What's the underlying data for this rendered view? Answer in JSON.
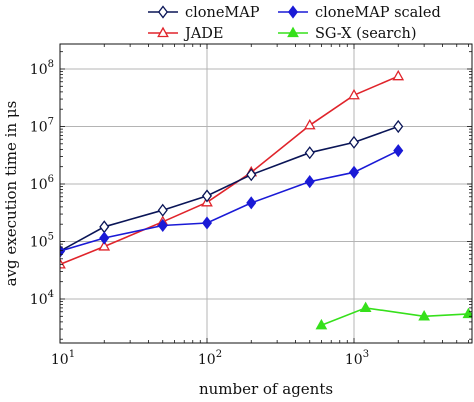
{
  "chart_data": {
    "type": "line",
    "xlabel": "number of agents",
    "ylabel": "avg execution time in μs",
    "x_scale": "log",
    "y_scale": "log",
    "xlim": [
      10,
      6000
    ],
    "ylim": [
      1000,
      200000000
    ],
    "grid": true,
    "legend_position": "top",
    "x_ticks": [
      {
        "base": "10",
        "exp": "1"
      },
      {
        "base": "10",
        "exp": "2"
      },
      {
        "base": "10",
        "exp": "3"
      }
    ],
    "y_ticks": [
      {
        "base": "10",
        "exp": "4"
      },
      {
        "base": "10",
        "exp": "5"
      },
      {
        "base": "10",
        "exp": "6"
      },
      {
        "base": "10",
        "exp": "7"
      },
      {
        "base": "10",
        "exp": "8"
      }
    ],
    "series": [
      {
        "name": "cloneMAP",
        "color": "#0a1557",
        "marker": "diamond-open",
        "x": [
          10,
          20,
          50,
          100,
          200,
          500,
          1000,
          2000
        ],
        "y": [
          68000,
          180000,
          350000,
          620000,
          1450000,
          3500000,
          5300000,
          10000000
        ]
      },
      {
        "name": "cloneMAP scaled",
        "color": "#1a1ad6",
        "marker": "diamond-filled",
        "x": [
          10,
          20,
          50,
          100,
          200,
          500,
          1000,
          2000
        ],
        "y": [
          68000,
          115000,
          190000,
          210000,
          470000,
          1100000,
          1600000,
          3800000
        ]
      },
      {
        "name": "JADE",
        "color": "#e0242b",
        "marker": "triangle-open",
        "x": [
          10,
          20,
          50,
          100,
          200,
          500,
          1000,
          2000
        ],
        "y": [
          40000,
          82000,
          220000,
          480000,
          1600000,
          10500000,
          35000000,
          75000000
        ]
      },
      {
        "name": "SG-X (search)",
        "color": "#36e01b",
        "marker": "triangle-filled",
        "x": [
          600,
          1200,
          3000,
          6000
        ],
        "y": [
          3500,
          7000,
          5000,
          5500
        ]
      }
    ]
  }
}
